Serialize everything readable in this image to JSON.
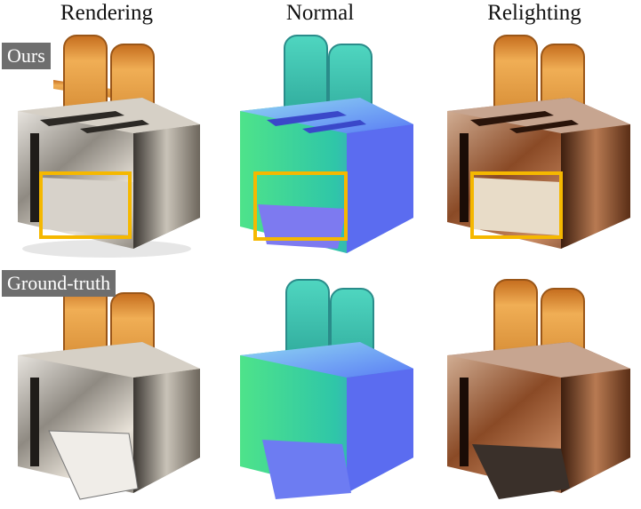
{
  "columns": [
    "Rendering",
    "Normal",
    "Relighting"
  ],
  "rows": [
    "Ours",
    "Ground-truth"
  ],
  "colors": {
    "highlight_box": "#f5b800",
    "label_bg": "#6e6e6e",
    "toast": "#d9923a",
    "chrome": "#b9b3aa",
    "copper": "#8a4a26",
    "normal_blue": "#5b6cf0",
    "normal_green": "#4ee38a"
  },
  "icons": [
    "toaster-image",
    "highlight-box"
  ]
}
